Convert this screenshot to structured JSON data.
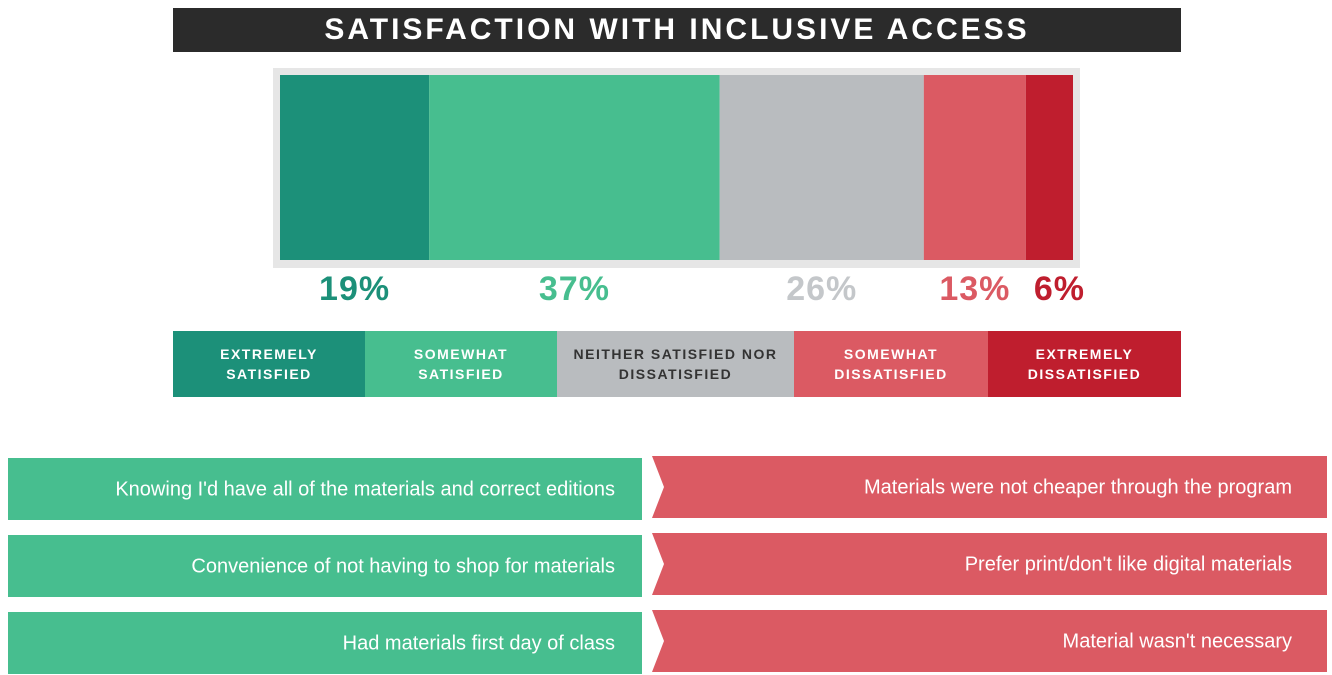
{
  "chart_data": {
    "type": "stacked_bar",
    "title": "SATISFACTION WITH INCLUSIVE ACCESS",
    "categories": [
      "EXTREMELY SATISFIED",
      "SOMEWHAT SATISFIED",
      "NEITHER SATISFIED NOR DISSATISFIED",
      "SOMEWHAT DISSATISFIED",
      "EXTREMELY DISSATISFIED"
    ],
    "values": [
      19,
      37,
      26,
      13,
      6
    ],
    "value_labels": [
      "19%",
      "37%",
      "26%",
      "13%",
      "6%"
    ],
    "colors": [
      "#1c9079",
      "#47be8f",
      "#b9bcbf",
      "#db5a63",
      "#bf1e2e"
    ]
  },
  "reasons": {
    "positive": [
      "Knowing I'd have all of the materials and correct editions",
      "Convenience of not having to shop for materials",
      "Had materials first day of class"
    ],
    "negative": [
      "Materials were not cheaper through the program",
      "Prefer print/don't like digital materials",
      "Material wasn't necessary"
    ]
  }
}
